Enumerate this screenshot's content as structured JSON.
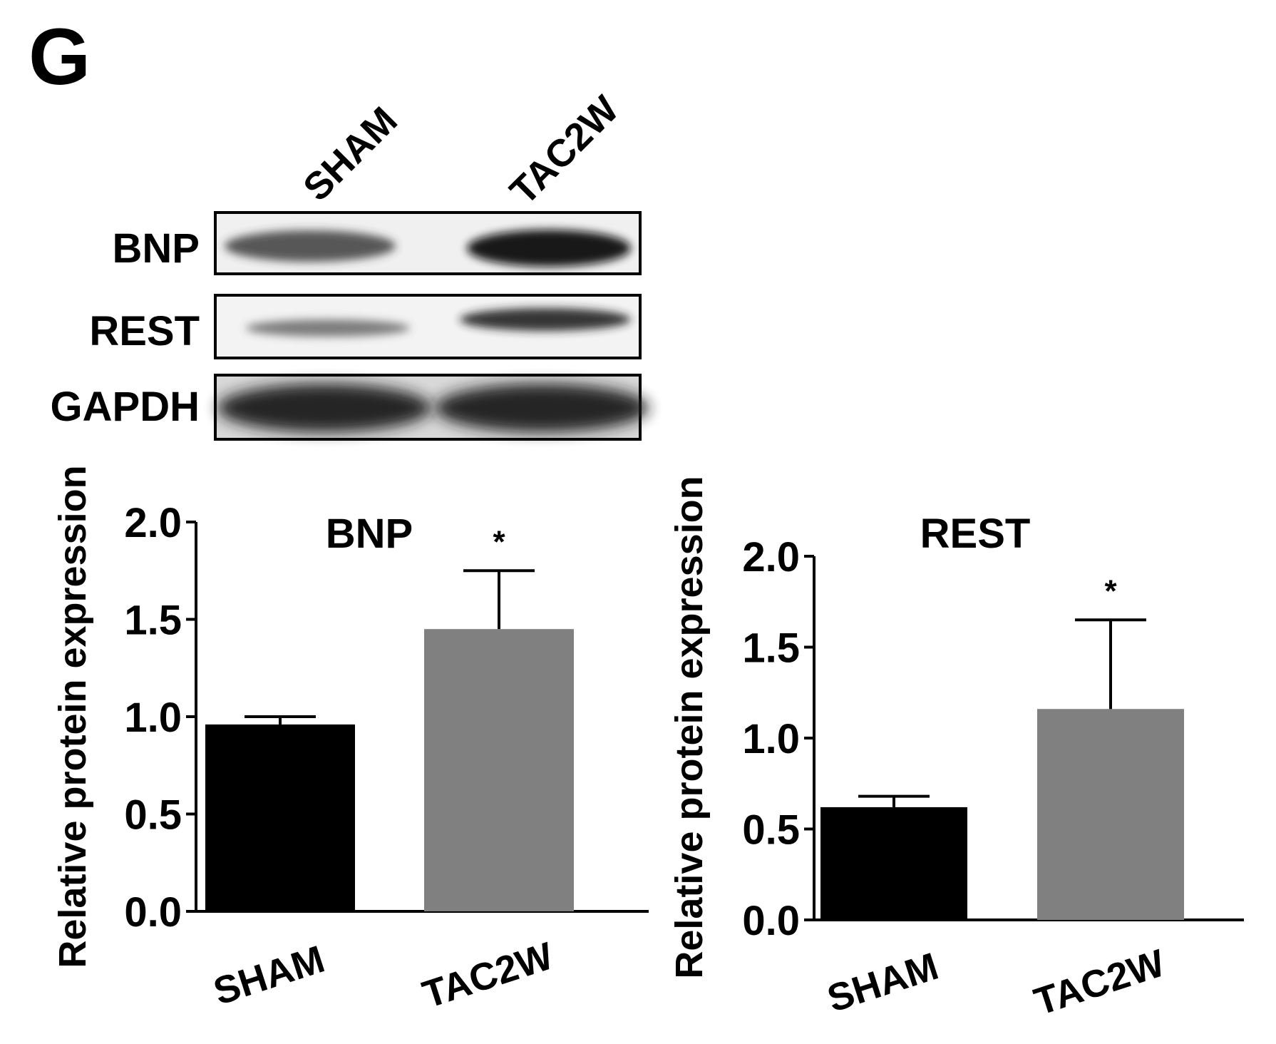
{
  "panel_label": "G",
  "blot": {
    "lanes": [
      "SHAM",
      "TAC2W"
    ],
    "rows": [
      "BNP",
      "REST",
      "GAPDH"
    ]
  },
  "colors": {
    "sham_bar": "#000000",
    "tac2w_bar": "#808080",
    "axis": "#000000",
    "blot_background": "#f2f2f2",
    "blot_band": "#1a1a1a"
  },
  "chart_data": [
    {
      "type": "bar",
      "title": "BNP",
      "categories": [
        "SHAM",
        "TAC2W"
      ],
      "values": [
        0.96,
        1.45
      ],
      "error": [
        0.04,
        0.3
      ],
      "annotations": [
        "",
        "*"
      ],
      "ylabel": "Relative  protein expression",
      "ylim": [
        0,
        2.0
      ],
      "yticks": [
        "0.0",
        "0.5",
        "1.0",
        "1.5",
        "2.0"
      ],
      "grid": false
    },
    {
      "type": "bar",
      "title": "REST",
      "categories": [
        "SHAM",
        "TAC2W"
      ],
      "values": [
        0.62,
        1.16
      ],
      "error": [
        0.06,
        0.49
      ],
      "annotations": [
        "",
        "*"
      ],
      "ylabel": "Relative  protein expression",
      "ylim": [
        0,
        2.0
      ],
      "yticks": [
        "0.0",
        "0.5",
        "1.0",
        "1.5",
        "2.0"
      ],
      "grid": false
    }
  ]
}
